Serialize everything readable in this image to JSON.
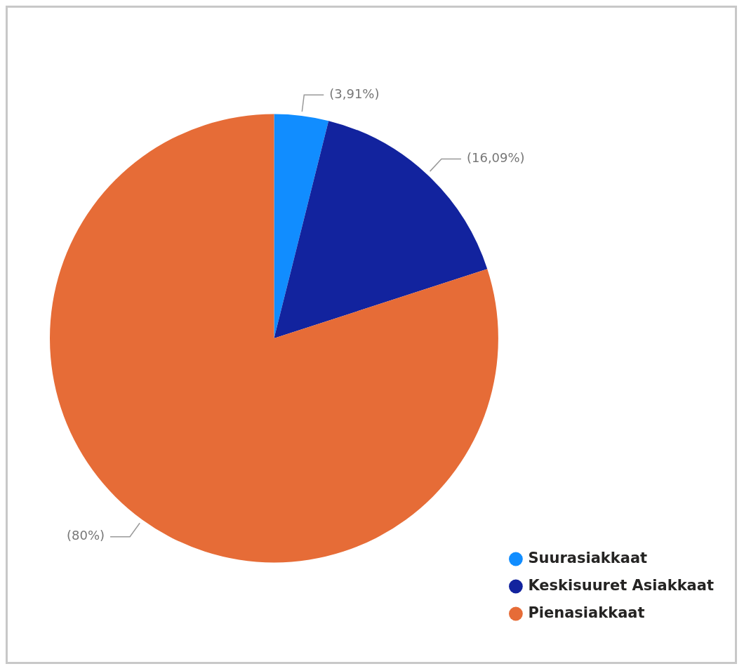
{
  "chart_data": {
    "type": "pie",
    "categories": [
      "Suurasiakkaat",
      "Keskisuuret Asiakkaat",
      "Pienasiakkaat"
    ],
    "values": [
      3.91,
      16.09,
      80
    ],
    "colors": [
      "#118dff",
      "#12239e",
      "#e66c37"
    ],
    "value_labels": [
      "(3,91%)",
      "(16,09%)",
      "(80%)"
    ],
    "legend": "bottom right"
  }
}
